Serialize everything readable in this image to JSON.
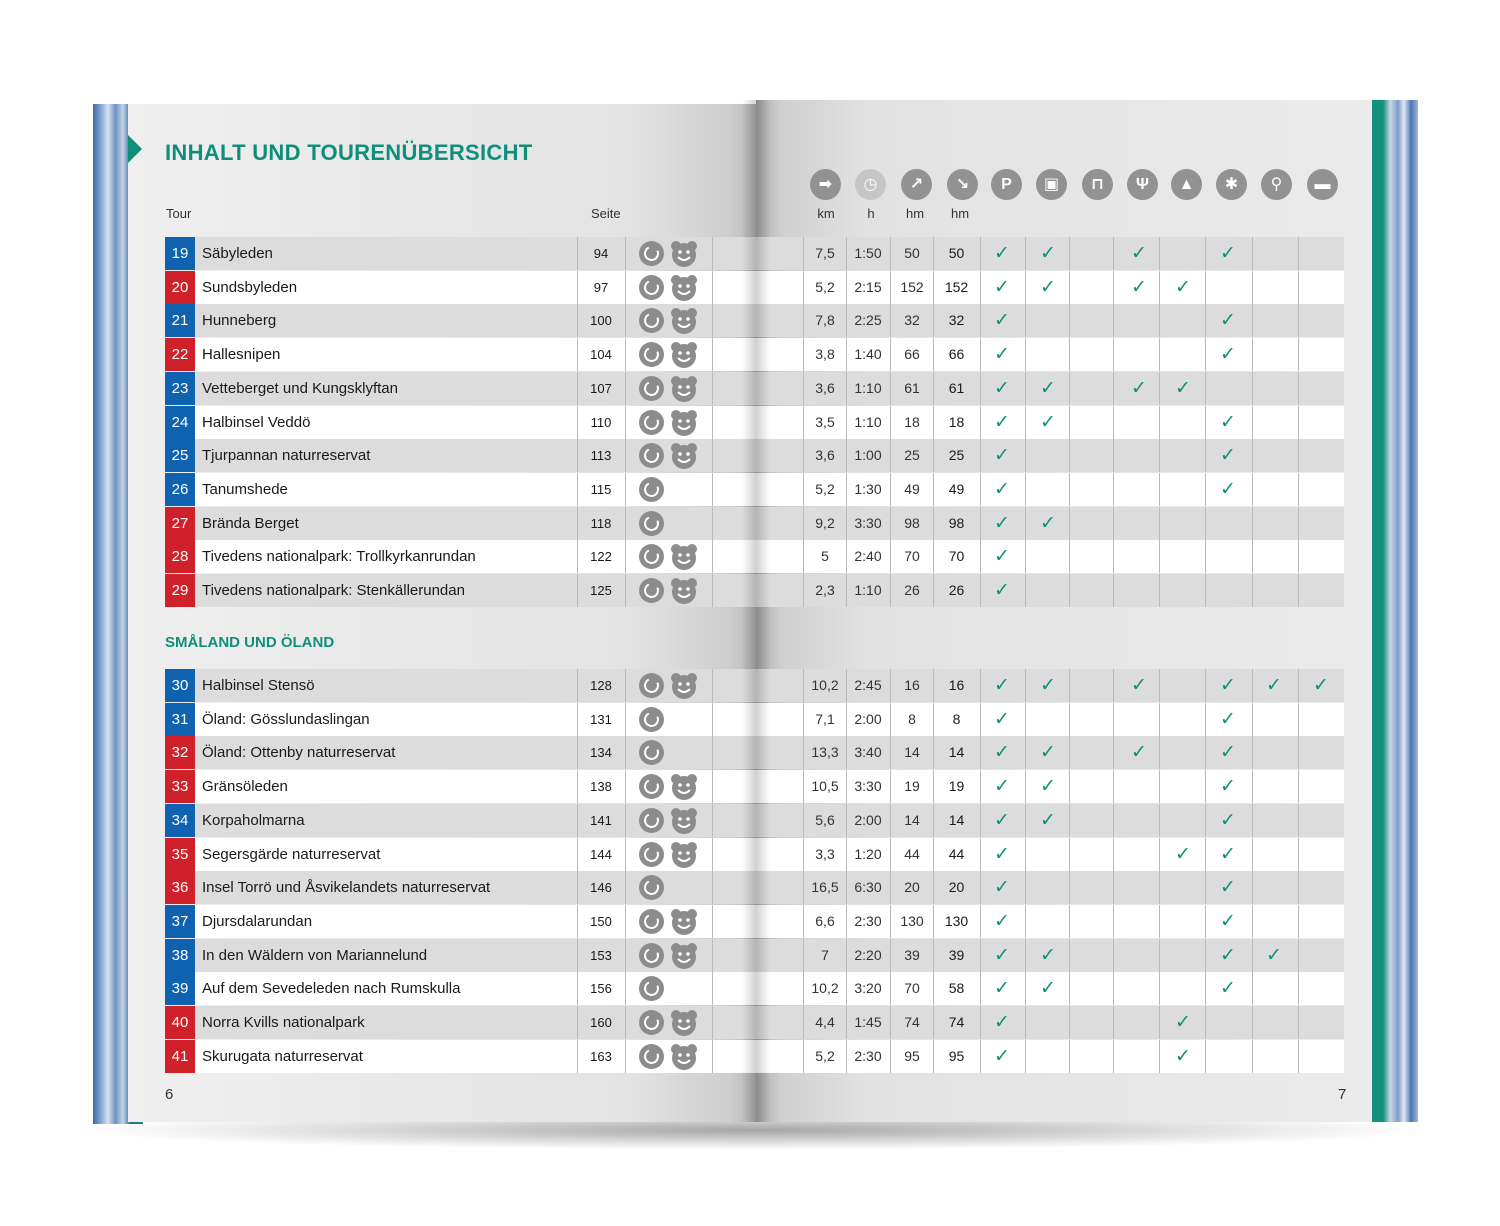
{
  "title": "INHALT UND TOURENÜBERSICHT",
  "headers": {
    "tour": "Tour",
    "seite": "Seite"
  },
  "units": [
    "km",
    "h",
    "hm",
    "hm"
  ],
  "column_icons": [
    "signpost-icon",
    "clock-icon",
    "ascent-icon",
    "descent-icon",
    "parking-icon",
    "bus-icon",
    "cable-car-icon",
    "restaurant-icon",
    "tent-icon",
    "snowflake-icon",
    "bicycle-icon",
    "bed-icon"
  ],
  "section2": "SMÅLAND UND ÖLAND",
  "page_left": "6",
  "page_right": "7",
  "check_glyph": "✓",
  "colors": {
    "accent": "#0f8f79",
    "blue": "#0f62b0",
    "red": "#d0202a"
  },
  "section1_rows": [
    {
      "n": "19",
      "c": "blue",
      "name": "Säbyleden",
      "seite": "94",
      "i2": "bear",
      "km": "7,5",
      "h": "1:50",
      "up": "50",
      "down": "50",
      "checks": [
        1,
        1,
        0,
        1,
        0,
        1,
        0,
        0
      ]
    },
    {
      "n": "20",
      "c": "red",
      "name": "Sundsbyleden",
      "seite": "97",
      "i2": "bear",
      "km": "5,2",
      "h": "2:15",
      "up": "152",
      "down": "152",
      "checks": [
        1,
        1,
        0,
        1,
        1,
        0,
        0,
        0
      ]
    },
    {
      "n": "21",
      "c": "blue",
      "name": "Hunneberg",
      "seite": "100",
      "i2": "bear",
      "km": "7,8",
      "h": "2:25",
      "up": "32",
      "down": "32",
      "checks": [
        1,
        0,
        0,
        0,
        0,
        1,
        0,
        0
      ]
    },
    {
      "n": "22",
      "c": "red",
      "name": "Hallesnipen",
      "seite": "104",
      "i2": "bear",
      "km": "3,8",
      "h": "1:40",
      "up": "66",
      "down": "66",
      "checks": [
        1,
        0,
        0,
        0,
        0,
        1,
        0,
        0
      ]
    },
    {
      "n": "23",
      "c": "blue",
      "name": "Vetteberget und Kungsklyftan",
      "seite": "107",
      "i2": "bear",
      "km": "3,6",
      "h": "1:10",
      "up": "61",
      "down": "61",
      "checks": [
        1,
        1,
        0,
        1,
        1,
        0,
        0,
        0
      ]
    },
    {
      "n": "24",
      "c": "blue",
      "name": "Halbinsel Veddö",
      "seite": "110",
      "i2": "bear",
      "km": "3,5",
      "h": "1:10",
      "up": "18",
      "down": "18",
      "checks": [
        1,
        1,
        0,
        0,
        0,
        1,
        0,
        0
      ]
    },
    {
      "n": "25",
      "c": "blue",
      "name": "Tjurpannan naturreservat",
      "seite": "113",
      "i2": "bear",
      "km": "3,6",
      "h": "1:00",
      "up": "25",
      "down": "25",
      "checks": [
        1,
        0,
        0,
        0,
        0,
        1,
        0,
        0
      ]
    },
    {
      "n": "26",
      "c": "blue",
      "name": "Tanumshede",
      "seite": "115",
      "i2": "",
      "km": "5,2",
      "h": "1:30",
      "up": "49",
      "down": "49",
      "checks": [
        1,
        0,
        0,
        0,
        0,
        1,
        0,
        0
      ]
    },
    {
      "n": "27",
      "c": "red",
      "name": "Brända Berget",
      "seite": "118",
      "i2": "",
      "km": "9,2",
      "h": "3:30",
      "up": "98",
      "down": "98",
      "checks": [
        1,
        1,
        0,
        0,
        0,
        0,
        0,
        0
      ]
    },
    {
      "n": "28",
      "c": "red",
      "name": "Tivedens nationalpark: Trollkyrkanrundan",
      "seite": "122",
      "i2": "bear",
      "km": "5",
      "h": "2:40",
      "up": "70",
      "down": "70",
      "checks": [
        1,
        0,
        0,
        0,
        0,
        0,
        0,
        0
      ]
    },
    {
      "n": "29",
      "c": "red",
      "name": "Tivedens nationalpark: Stenkällerundan",
      "seite": "125",
      "i2": "bear",
      "km": "2,3",
      "h": "1:10",
      "up": "26",
      "down": "26",
      "checks": [
        1,
        0,
        0,
        0,
        0,
        0,
        0,
        0
      ]
    }
  ],
  "section2_rows": [
    {
      "n": "30",
      "c": "blue",
      "name": "Halbinsel Stensö",
      "seite": "128",
      "i2": "bear",
      "km": "10,2",
      "h": "2:45",
      "up": "16",
      "down": "16",
      "checks": [
        1,
        1,
        0,
        1,
        0,
        1,
        1,
        1
      ]
    },
    {
      "n": "31",
      "c": "blue",
      "name": "Öland: Gösslundaslingan",
      "seite": "131",
      "i2": "",
      "km": "7,1",
      "h": "2:00",
      "up": "8",
      "down": "8",
      "checks": [
        1,
        0,
        0,
        0,
        0,
        1,
        0,
        0
      ]
    },
    {
      "n": "32",
      "c": "red",
      "name": "Öland: Ottenby naturreservat",
      "seite": "134",
      "i2": "",
      "km": "13,3",
      "h": "3:40",
      "up": "14",
      "down": "14",
      "checks": [
        1,
        1,
        0,
        1,
        0,
        1,
        0,
        0
      ]
    },
    {
      "n": "33",
      "c": "red",
      "name": "Gränsöleden",
      "seite": "138",
      "i2": "bear",
      "km": "10,5",
      "h": "3:30",
      "up": "19",
      "down": "19",
      "checks": [
        1,
        1,
        0,
        0,
        0,
        1,
        0,
        0
      ]
    },
    {
      "n": "34",
      "c": "blue",
      "name": "Korpaholmarna",
      "seite": "141",
      "i2": "bear",
      "km": "5,6",
      "h": "2:00",
      "up": "14",
      "down": "14",
      "checks": [
        1,
        1,
        0,
        0,
        0,
        1,
        0,
        0
      ]
    },
    {
      "n": "35",
      "c": "red",
      "name": "Segersgärde naturreservat",
      "seite": "144",
      "i2": "bear",
      "km": "3,3",
      "h": "1:20",
      "up": "44",
      "down": "44",
      "checks": [
        1,
        0,
        0,
        0,
        1,
        1,
        0,
        0
      ]
    },
    {
      "n": "36",
      "c": "red",
      "name": "Insel Torrö und Åsvikelandets naturreservat",
      "seite": "146",
      "i2": "",
      "km": "16,5",
      "h": "6:30",
      "up": "20",
      "down": "20",
      "checks": [
        1,
        0,
        0,
        0,
        0,
        1,
        0,
        0
      ]
    },
    {
      "n": "37",
      "c": "blue",
      "name": "Djursdalarundan",
      "seite": "150",
      "i2": "bear",
      "km": "6,6",
      "h": "2:30",
      "up": "130",
      "down": "130",
      "checks": [
        1,
        0,
        0,
        0,
        0,
        1,
        0,
        0
      ]
    },
    {
      "n": "38",
      "c": "blue",
      "name": "In den Wäldern von Mariannelund",
      "seite": "153",
      "i2": "bear",
      "km": "7",
      "h": "2:20",
      "up": "39",
      "down": "39",
      "checks": [
        1,
        1,
        0,
        0,
        0,
        1,
        1,
        0
      ]
    },
    {
      "n": "39",
      "c": "blue",
      "name": "Auf dem Sevedeleden nach Rumskulla",
      "seite": "156",
      "i2": "",
      "km": "10,2",
      "h": "3:20",
      "up": "70",
      "down": "58",
      "checks": [
        1,
        1,
        0,
        0,
        0,
        1,
        0,
        0
      ]
    },
    {
      "n": "40",
      "c": "red",
      "name": "Norra Kvills nationalpark",
      "seite": "160",
      "i2": "bear",
      "km": "4,4",
      "h": "1:45",
      "up": "74",
      "down": "74",
      "checks": [
        1,
        0,
        0,
        0,
        1,
        0,
        0,
        0
      ]
    },
    {
      "n": "41",
      "c": "red",
      "name": "Skurugata naturreservat",
      "seite": "163",
      "i2": "bear",
      "km": "5,2",
      "h": "2:30",
      "up": "95",
      "down": "95",
      "checks": [
        1,
        0,
        0,
        0,
        1,
        0,
        0,
        0
      ]
    }
  ]
}
